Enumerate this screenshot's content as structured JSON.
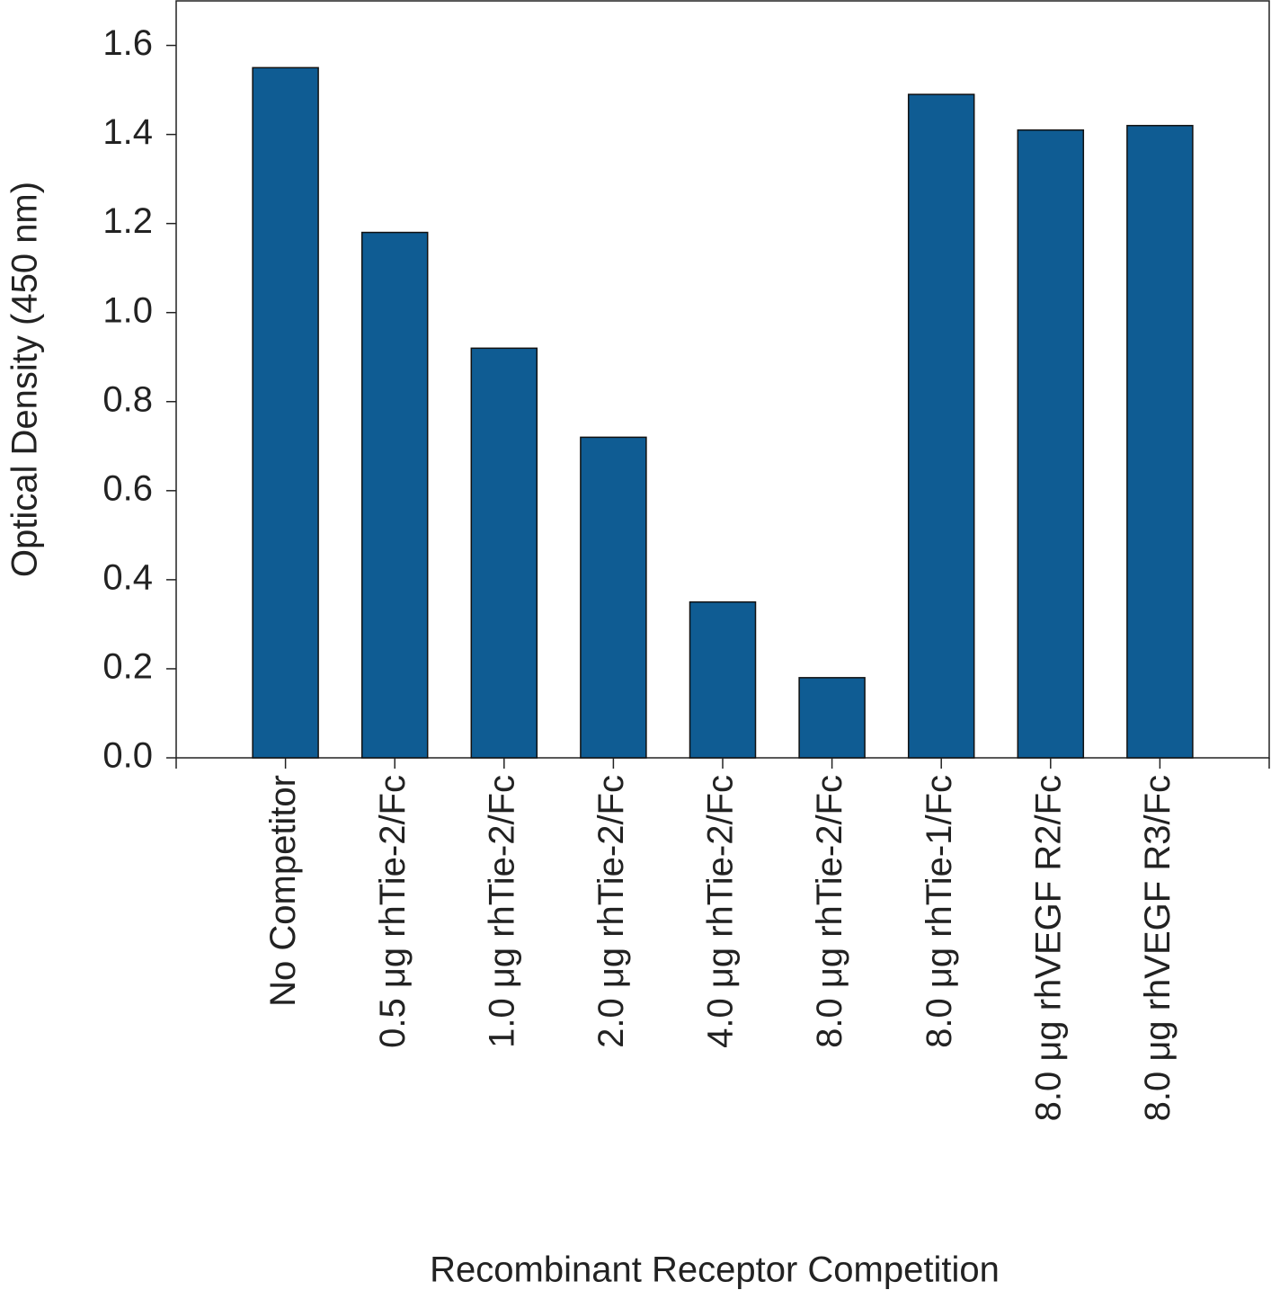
{
  "chart_data": {
    "type": "bar",
    "x_label": "Recombinant Receptor Competition",
    "y_label": "Optical Density (450 nm)",
    "categories": [
      "No Competitor",
      "0.5 μg rhTie-2/Fc",
      "1.0 μg rhTie-2/Fc",
      "2.0 μg rhTie-2/Fc",
      "4.0 μg rhTie-2/Fc",
      "8.0 μg rhTie-2/Fc",
      "8.0 μg rhTie-1/Fc",
      "8.0 μg rhVEGF R2/Fc",
      "8.0 μg rhVEGF R3/Fc"
    ],
    "values": [
      1.55,
      1.18,
      0.92,
      0.72,
      0.35,
      0.18,
      1.49,
      1.41,
      1.42
    ],
    "color": "#0f5c93",
    "ylim": [
      0,
      1.7
    ],
    "yticks": [
      {
        "value": 0,
        "label": "0.0"
      },
      0.2,
      0.4,
      0.6,
      0.8,
      {
        "value": 1,
        "label": "1.0"
      },
      1.2,
      1.4,
      1.6
    ],
    "grid": false
  }
}
